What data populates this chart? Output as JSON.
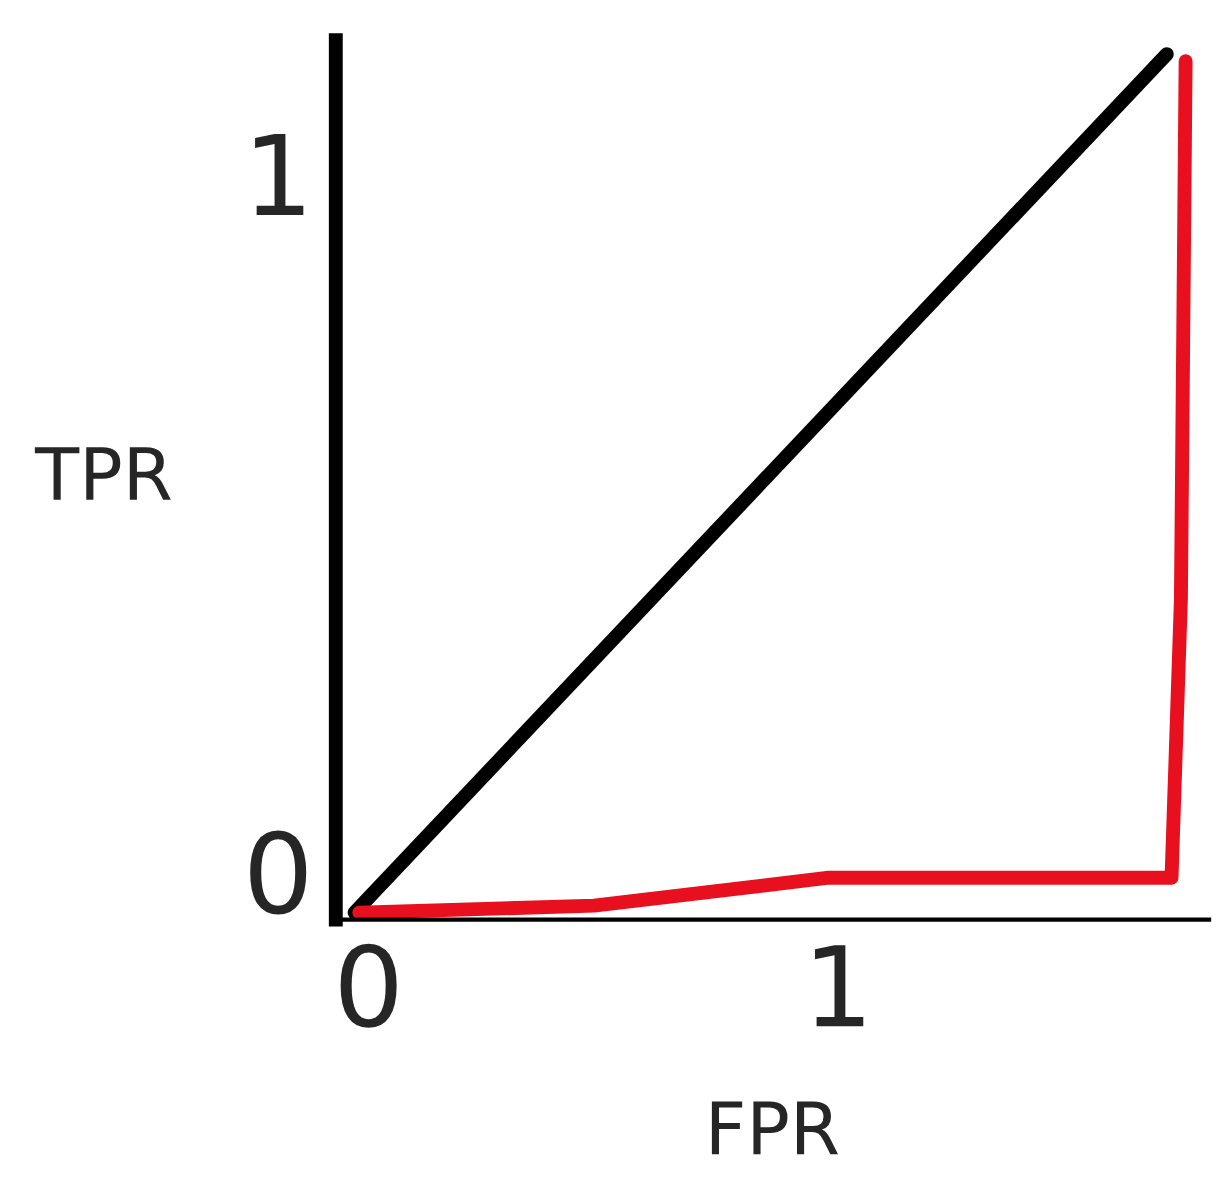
{
  "chart_data": {
    "type": "line",
    "xlabel": "FPR",
    "ylabel": "TPR",
    "xlim": [
      -0.07,
      1.79
    ],
    "ylim": [
      -0.07,
      1.19
    ],
    "xticks": [
      0,
      1
    ],
    "yticks": [
      0,
      1
    ],
    "grid": false,
    "marker": "none",
    "line_style": "solid",
    "series": [
      {
        "color": "#000000",
        "x": [
          -0.03,
          1.7
        ],
        "values": [
          -0.06,
          1.17
        ]
      },
      {
        "color": "#e8101e",
        "x": [
          -0.02,
          0.48,
          0.98,
          1.71,
          1.73,
          1.74
        ],
        "values": [
          -0.06,
          -0.05,
          -0.01,
          -0.01,
          0.39,
          1.16
        ]
      }
    ]
  }
}
